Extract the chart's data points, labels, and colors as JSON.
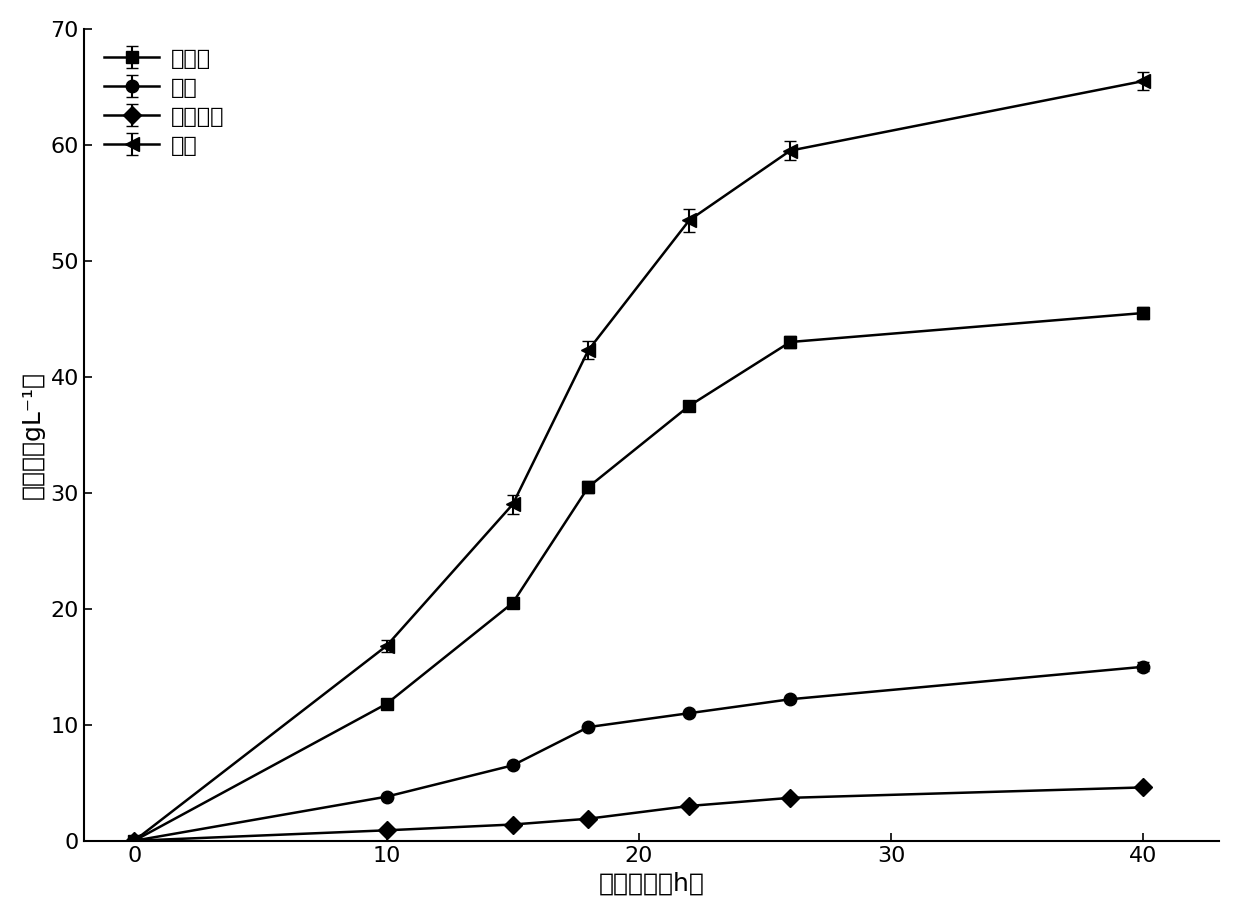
{
  "title": "",
  "xlabel": "水解时间（h）",
  "ylabel": "糖浓度（gL⁻¹）",
  "xlim": [
    -2,
    43
  ],
  "ylim": [
    0,
    70
  ],
  "xticks": [
    0,
    10,
    20,
    30,
    40
  ],
  "yticks": [
    0,
    10,
    20,
    30,
    40,
    50,
    60,
    70
  ],
  "series": [
    {
      "label": "葡萄糖",
      "x": [
        0,
        10,
        15,
        18,
        22,
        26,
        40
      ],
      "y": [
        0,
        11.8,
        20.5,
        30.5,
        37.5,
        43.0,
        45.5
      ],
      "yerr": [
        0,
        0.4,
        0.4,
        0.5,
        0,
        0.5,
        0.5
      ],
      "marker": "s",
      "markersize": 9,
      "color": "#000000",
      "linewidth": 1.8
    },
    {
      "label": "木糖",
      "x": [
        0,
        10,
        15,
        18,
        22,
        26,
        40
      ],
      "y": [
        0,
        3.8,
        6.5,
        9.8,
        11.0,
        12.2,
        15.0
      ],
      "yerr": [
        0,
        0,
        0,
        0,
        0,
        0,
        0.4
      ],
      "marker": "o",
      "markersize": 9,
      "color": "#000000",
      "linewidth": 1.8
    },
    {
      "label": "葡萄醉酸",
      "x": [
        0,
        10,
        15,
        18,
        22,
        26,
        40
      ],
      "y": [
        0,
        0.9,
        1.4,
        1.9,
        3.0,
        3.7,
        4.6
      ],
      "yerr": [
        0,
        0,
        0,
        0,
        0,
        0,
        0
      ],
      "marker": "D",
      "markersize": 9,
      "color": "#000000",
      "linewidth": 1.8
    },
    {
      "label": "总糖",
      "x": [
        0,
        10,
        15,
        18,
        22,
        26,
        40
      ],
      "y": [
        0,
        16.8,
        29.0,
        42.3,
        53.5,
        59.5,
        65.5
      ],
      "yerr": [
        0,
        0.5,
        0.8,
        0.8,
        1.0,
        0.8,
        0.8
      ],
      "marker": "<",
      "markersize": 10,
      "color": "#000000",
      "linewidth": 1.8
    }
  ],
  "legend_loc": "upper left",
  "background_color": "#ffffff",
  "font_size": 16,
  "label_font_size": 18,
  "tick_font_size": 16
}
